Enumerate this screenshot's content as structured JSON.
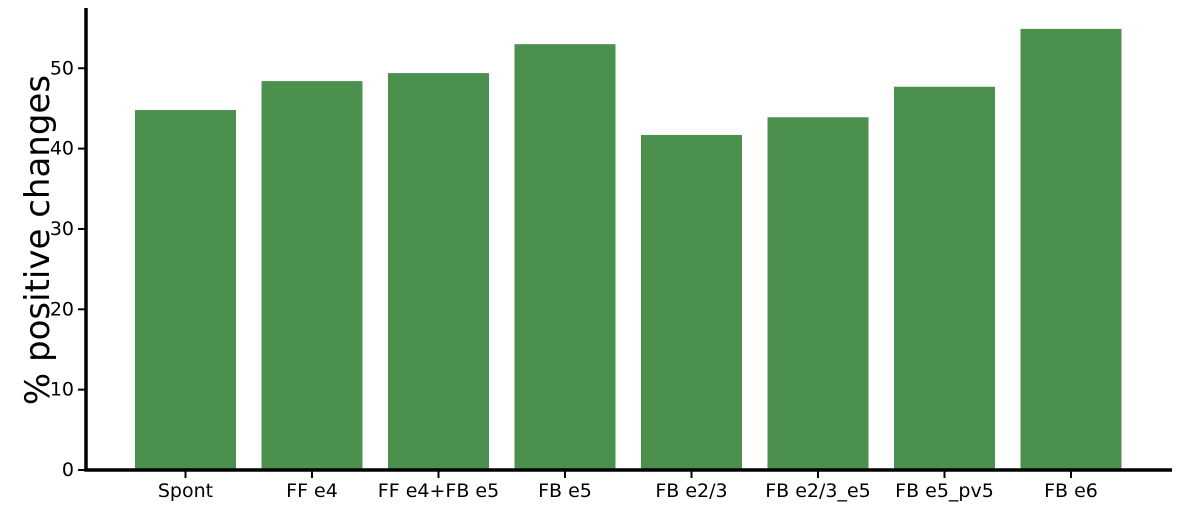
{
  "chart_data": {
    "type": "bar",
    "title": "",
    "xlabel": "",
    "ylabel": "% positive changes",
    "categories": [
      "Spont",
      "FF e4",
      "FF e4+FB e5",
      "FB e5",
      "FB e2/3",
      "FB e2/3_e5",
      "FB e5_pv5",
      "FB e6"
    ],
    "values": [
      44.8,
      48.4,
      49.4,
      53.0,
      41.7,
      43.9,
      47.7,
      54.9
    ],
    "ylim": [
      0,
      57.5
    ],
    "yticks": [
      0,
      10,
      20,
      30,
      40,
      50
    ],
    "grid": false,
    "bar_color": "#4b904c",
    "axis_color": "#000000"
  }
}
